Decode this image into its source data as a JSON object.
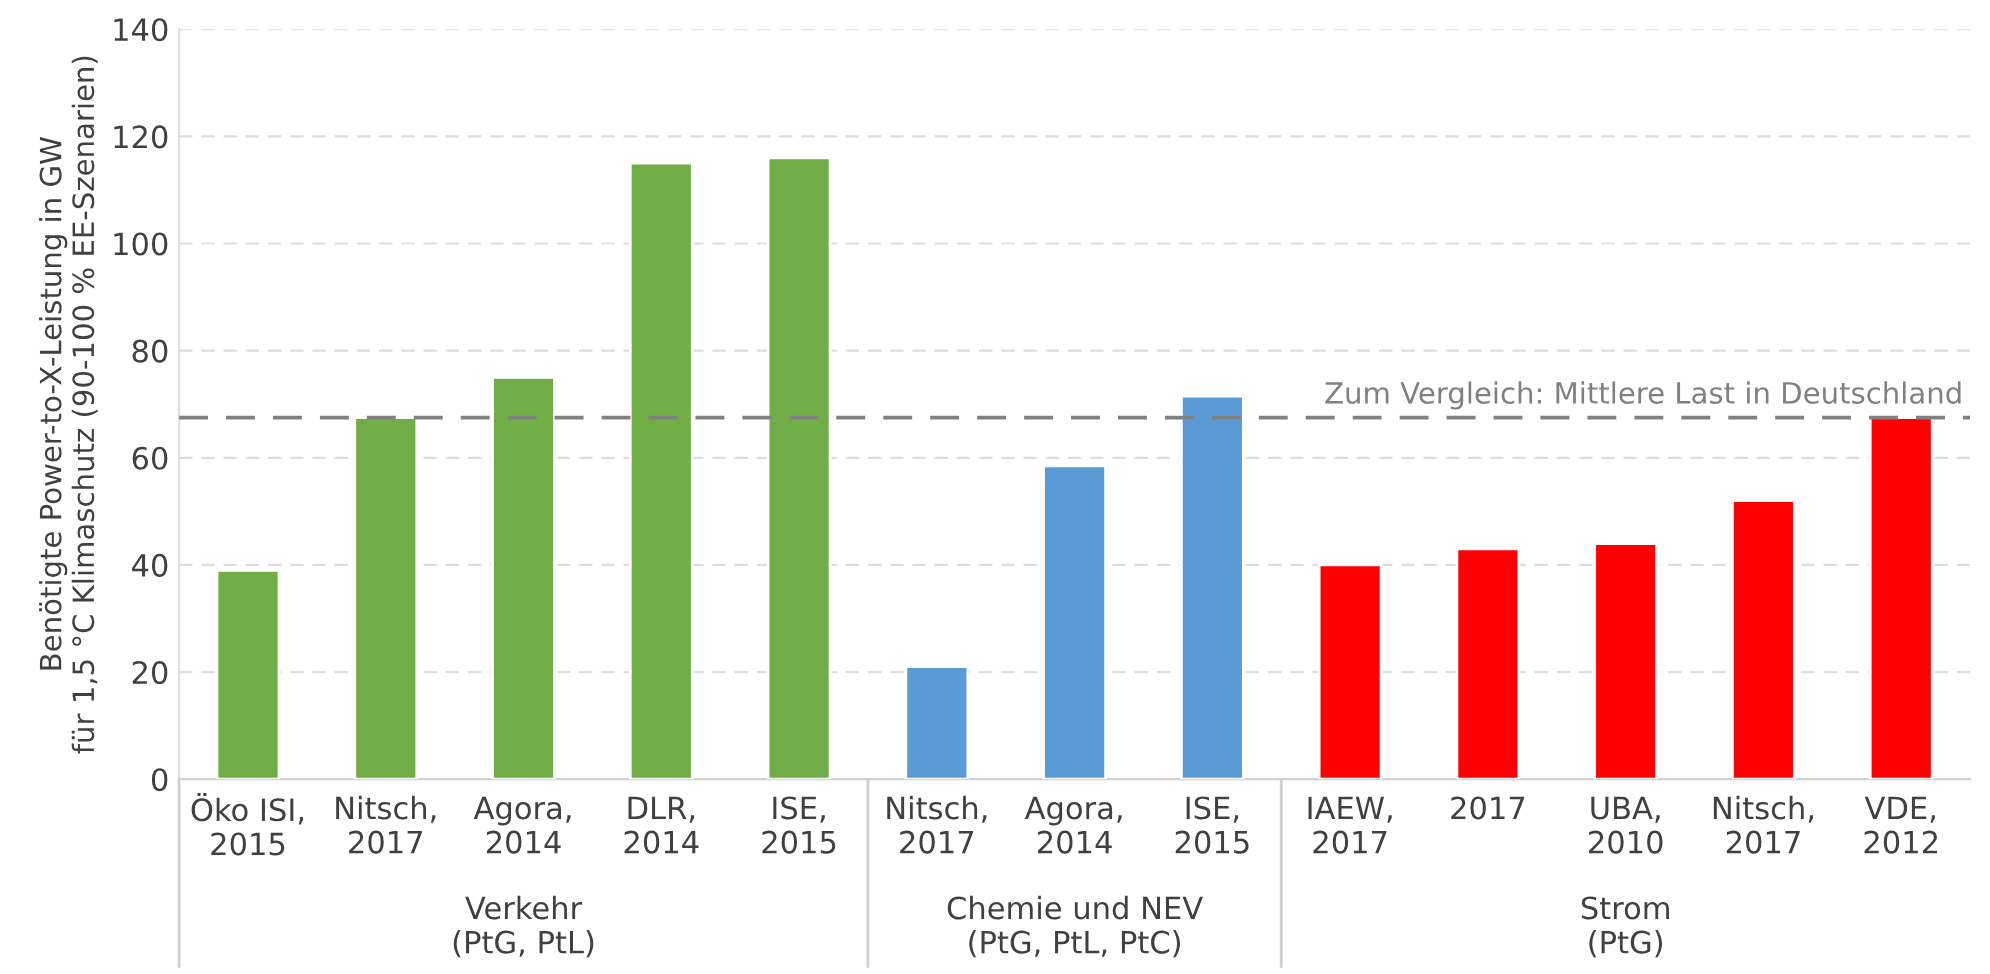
{
  "chart_data": {
    "type": "bar",
    "ylabel": "Benötigte Power-to-X-Leistung in GW\nfür 1,5 °C Klimaschutz (90-100 % EE-Szenarien)",
    "categories": [
      "Öko ISI,\n2015",
      "Nitsch,\n2017",
      "Agora,\n2014",
      "DLR,\n2014",
      "ISE,\n2015",
      "Nitsch,\n2017",
      "Agora,\n2014",
      "ISE,\n2015",
      "IAEW,\n2017",
      "2017",
      "UBA,\n2010",
      "Nitsch,\n2017",
      "VDE,\n2012"
    ],
    "values": [
      39,
      67.5,
      75,
      115,
      116,
      21,
      58.5,
      71.5,
      40,
      43,
      44,
      52,
      67.5
    ],
    "colors": [
      "#70ad47",
      "#70ad47",
      "#70ad47",
      "#70ad47",
      "#70ad47",
      "#5b9bd5",
      "#5b9bd5",
      "#5b9bd5",
      "#ff0000",
      "#ff0000",
      "#ff0000",
      "#ff0000",
      "#ff0000"
    ],
    "ylim": [
      0,
      140
    ],
    "yticks": [
      0,
      20,
      40,
      60,
      80,
      100,
      120,
      140
    ],
    "grid": "y",
    "ref_lines": [
      {
        "axis": "y",
        "value": 67.5,
        "label": "Zum Vergleich: Mittlere Last in Deutschland",
        "color": "#808080",
        "line_style": "dashed"
      }
    ],
    "annotations": [
      "Verkehr\n(PtG, PtL)",
      "Chemie und NEV\n(PtG, PtL, PtC)",
      "Strom\n(PtG)"
    ]
  }
}
